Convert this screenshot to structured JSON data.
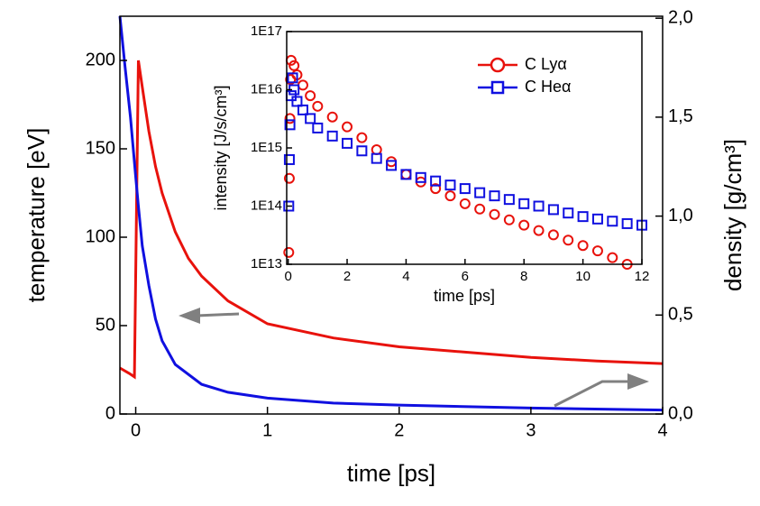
{
  "chart_data": [
    {
      "type": "line",
      "xlabel": "time [ps]",
      "ylabel": "temperature [eV]",
      "y2label": "density [g/cm³]",
      "xlim": [
        -0.12,
        4
      ],
      "xticks": [
        0,
        1,
        2,
        3,
        4
      ],
      "ylim": [
        0,
        225
      ],
      "yticks": [
        0,
        50,
        100,
        150,
        200
      ],
      "y2lim": [
        0,
        2.01
      ],
      "y2ticks": [
        {
          "value": 0,
          "label": "0,0"
        },
        {
          "value": 0.5,
          "label": "0,5"
        },
        {
          "value": 1,
          "label": "1,0"
        },
        {
          "value": 1.5,
          "label": "1,5"
        },
        {
          "value": 2,
          "label": "2,0"
        }
      ],
      "series": [
        {
          "color": "#e8120c",
          "x": [
            -0.12,
            -0.05,
            -0.01,
            0.02,
            0.05,
            0.1,
            0.15,
            0.2,
            0.3,
            0.4,
            0.5,
            0.7,
            1,
            1.5,
            2,
            2.5,
            3,
            3.5,
            4
          ],
          "values": [
            26,
            23,
            21,
            200,
            185,
            160,
            140,
            125,
            103,
            88,
            78,
            64,
            51,
            43,
            38,
            35,
            32,
            30,
            28.5
          ]
        },
        {
          "color": "#1010e0",
          "axis": "y2",
          "x": [
            -0.12,
            -0.08,
            -0.04,
            -0.02,
            0,
            0.02,
            0.05,
            0.1,
            0.15,
            0.2,
            0.3,
            0.5,
            0.7,
            1,
            1.5,
            2,
            3,
            4
          ],
          "values": [
            2.01,
            1.75,
            1.5,
            1.35,
            1.2,
            1.05,
            0.85,
            0.65,
            0.48,
            0.37,
            0.25,
            0.15,
            0.11,
            0.08,
            0.055,
            0.045,
            0.03,
            0.02
          ]
        }
      ]
    },
    {
      "type": "scatter",
      "xlabel": "time [ps]",
      "ylabel": "intensity [J/s/cm³]",
      "xlim": [
        -0.05,
        12
      ],
      "xticks": [
        0,
        2,
        4,
        6,
        8,
        10,
        12
      ],
      "ylim": [
        10000000000000.0,
        1e+17
      ],
      "log_y": true,
      "yticks": [
        {
          "value": 10000000000000.0,
          "label": "1E13"
        },
        {
          "value": 100000000000000.0,
          "label": "1E14"
        },
        {
          "value": 1000000000000000.0,
          "label": "1E15"
        },
        {
          "value": 1e+16,
          "label": "1E16"
        },
        {
          "value": 1e+17,
          "label": "1E17"
        }
      ],
      "legend": "upper right",
      "series": [
        {
          "name": "C Lyα",
          "color": "#e8120c",
          "marker": "circle",
          "x": [
            0.02,
            0.04,
            0.06,
            0.08,
            0.1,
            0.2,
            0.3,
            0.5,
            0.75,
            1,
            1.5,
            2,
            2.5,
            3,
            3.5,
            4,
            4.5,
            5,
            5.5,
            6,
            6.5,
            7,
            7.5,
            8,
            8.5,
            9,
            9.5,
            10,
            10.5,
            11,
            11.5
          ],
          "values": [
            16000000000000.0,
            300000000000000.0,
            3200000000000000.0,
            1.5e+16,
            3.2e+16,
            2.6e+16,
            1.8e+16,
            1.2e+16,
            7900000000000000.0,
            5200000000000000.0,
            3400000000000000.0,
            2300000000000000.0,
            1500000000000000.0,
            930000000000000.0,
            580000000000000.0,
            350000000000000.0,
            260000000000000.0,
            200000000000000.0,
            150000000000000.0,
            110000000000000.0,
            89000000000000.0,
            72000000000000.0,
            58000000000000.0,
            47000000000000.0,
            38000000000000.0,
            32000000000000.0,
            26000000000000.0,
            21000000000000.0,
            17000000000000.0,
            13000000000000.0,
            10000000000000.0
          ]
        },
        {
          "name": "C Heα",
          "color": "#1010e0",
          "marker": "square",
          "x": [
            0.02,
            0.04,
            0.06,
            0.1,
            0.15,
            0.2,
            0.3,
            0.5,
            0.75,
            1,
            1.5,
            2,
            2.5,
            3,
            3.5,
            4,
            4.5,
            5,
            5.5,
            6,
            6.5,
            7,
            7.5,
            8,
            8.5,
            9,
            9.5,
            10,
            10.5,
            11,
            11.5,
            12
          ],
          "values": [
            100000000000000.0,
            630000000000000.0,
            2500000000000000.0,
            7900000000000000.0,
            1.6e+16,
            1e+16,
            6300000000000000.0,
            4500000000000000.0,
            3200000000000000.0,
            2200000000000000.0,
            1600000000000000.0,
            1200000000000000.0,
            890000000000000.0,
            660000000000000.0,
            500000000000000.0,
            350000000000000.0,
            310000000000000.0,
            270000000000000.0,
            230000000000000.0,
            200000000000000.0,
            170000000000000.0,
            150000000000000.0,
            130000000000000.0,
            110000000000000.0,
            100000000000000.0,
            87000000000000.0,
            76000000000000.0,
            66000000000000.0,
            60000000000000.0,
            55000000000000.0,
            50000000000000.0,
            47000000000000.0
          ]
        }
      ]
    }
  ]
}
